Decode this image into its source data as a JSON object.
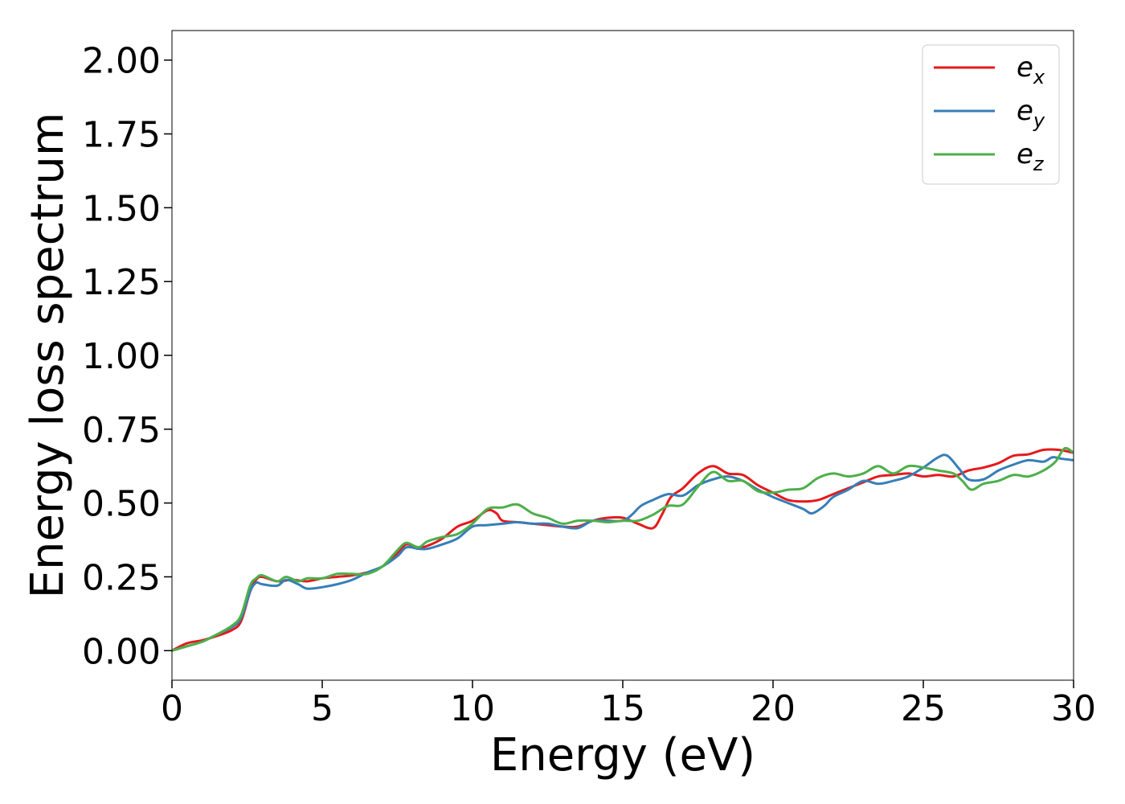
{
  "chart_data": {
    "type": "line",
    "title": "",
    "xlabel": "Energy (eV)",
    "ylabel": "Energy loss spectrum",
    "xlim": [
      0,
      30
    ],
    "ylim": [
      -0.1,
      2.1
    ],
    "xticks": [
      0,
      5,
      10,
      15,
      20,
      25,
      30
    ],
    "xtick_labels": [
      "0",
      "5",
      "10",
      "15",
      "20",
      "25",
      "30"
    ],
    "yticks": [
      0.0,
      0.25,
      0.5,
      0.75,
      1.0,
      1.25,
      1.5,
      1.75,
      2.0
    ],
    "ytick_labels": [
      "0.00",
      "0.25",
      "0.50",
      "0.75",
      "1.00",
      "1.25",
      "1.50",
      "1.75",
      "2.00"
    ],
    "grid": false,
    "legend_position": "top-right",
    "series": [
      {
        "name": "ex",
        "legend_base": "e",
        "legend_sub": "x",
        "color": "#e41a1c",
        "points": [
          [
            0,
            0
          ],
          [
            0.5,
            0.025
          ],
          [
            1,
            0.035
          ],
          [
            1.5,
            0.05
          ],
          [
            2,
            0.07
          ],
          [
            2.3,
            0.1
          ],
          [
            2.6,
            0.2
          ],
          [
            2.8,
            0.24
          ],
          [
            3,
            0.25
          ],
          [
            3.5,
            0.235
          ],
          [
            4,
            0.24
          ],
          [
            4.5,
            0.235
          ],
          [
            5,
            0.245
          ],
          [
            5.5,
            0.25
          ],
          [
            6,
            0.255
          ],
          [
            6.5,
            0.265
          ],
          [
            7,
            0.285
          ],
          [
            7.5,
            0.33
          ],
          [
            7.8,
            0.36
          ],
          [
            8.2,
            0.35
          ],
          [
            8.5,
            0.355
          ],
          [
            9,
            0.38
          ],
          [
            9.5,
            0.42
          ],
          [
            10,
            0.44
          ],
          [
            10.5,
            0.475
          ],
          [
            10.8,
            0.465
          ],
          [
            11,
            0.44
          ],
          [
            11.5,
            0.435
          ],
          [
            12,
            0.43
          ],
          [
            12.5,
            0.425
          ],
          [
            13,
            0.42
          ],
          [
            13.5,
            0.42
          ],
          [
            14,
            0.44
          ],
          [
            14.5,
            0.45
          ],
          [
            15,
            0.45
          ],
          [
            15.5,
            0.43
          ],
          [
            16,
            0.415
          ],
          [
            16.3,
            0.46
          ],
          [
            16.6,
            0.52
          ],
          [
            17,
            0.55
          ],
          [
            17.5,
            0.6
          ],
          [
            18,
            0.625
          ],
          [
            18.5,
            0.6
          ],
          [
            19,
            0.595
          ],
          [
            19.5,
            0.56
          ],
          [
            20,
            0.535
          ],
          [
            20.5,
            0.51
          ],
          [
            21,
            0.505
          ],
          [
            21.5,
            0.51
          ],
          [
            22,
            0.53
          ],
          [
            22.5,
            0.55
          ],
          [
            23,
            0.57
          ],
          [
            23.5,
            0.59
          ],
          [
            24,
            0.595
          ],
          [
            24.5,
            0.6
          ],
          [
            25,
            0.59
          ],
          [
            25.5,
            0.595
          ],
          [
            26,
            0.59
          ],
          [
            26.5,
            0.61
          ],
          [
            27,
            0.62
          ],
          [
            27.5,
            0.635
          ],
          [
            28,
            0.66
          ],
          [
            28.5,
            0.665
          ],
          [
            29,
            0.68
          ],
          [
            29.5,
            0.68
          ],
          [
            30,
            0.67
          ]
        ]
      },
      {
        "name": "ey",
        "legend_base": "e",
        "legend_sub": "y",
        "color": "#377eb8",
        "points": [
          [
            0,
            0
          ],
          [
            0.5,
            0.015
          ],
          [
            1,
            0.03
          ],
          [
            1.5,
            0.055
          ],
          [
            2,
            0.08
          ],
          [
            2.3,
            0.11
          ],
          [
            2.6,
            0.2
          ],
          [
            2.8,
            0.23
          ],
          [
            3,
            0.225
          ],
          [
            3.5,
            0.22
          ],
          [
            3.8,
            0.24
          ],
          [
            4.2,
            0.225
          ],
          [
            4.5,
            0.21
          ],
          [
            5,
            0.215
          ],
          [
            5.5,
            0.225
          ],
          [
            6,
            0.24
          ],
          [
            6.5,
            0.265
          ],
          [
            7,
            0.285
          ],
          [
            7.5,
            0.32
          ],
          [
            7.8,
            0.35
          ],
          [
            8.2,
            0.345
          ],
          [
            8.5,
            0.345
          ],
          [
            9,
            0.36
          ],
          [
            9.5,
            0.38
          ],
          [
            10,
            0.42
          ],
          [
            10.5,
            0.425
          ],
          [
            11,
            0.43
          ],
          [
            11.5,
            0.435
          ],
          [
            12,
            0.43
          ],
          [
            12.5,
            0.43
          ],
          [
            13,
            0.42
          ],
          [
            13.5,
            0.415
          ],
          [
            14,
            0.44
          ],
          [
            14.5,
            0.44
          ],
          [
            15,
            0.44
          ],
          [
            15.3,
            0.46
          ],
          [
            15.6,
            0.49
          ],
          [
            16,
            0.51
          ],
          [
            16.5,
            0.53
          ],
          [
            17,
            0.525
          ],
          [
            17.5,
            0.56
          ],
          [
            18,
            0.58
          ],
          [
            18.5,
            0.59
          ],
          [
            19,
            0.575
          ],
          [
            19.5,
            0.545
          ],
          [
            20,
            0.52
          ],
          [
            20.5,
            0.5
          ],
          [
            21,
            0.48
          ],
          [
            21.3,
            0.465
          ],
          [
            21.7,
            0.49
          ],
          [
            22,
            0.52
          ],
          [
            22.5,
            0.545
          ],
          [
            23,
            0.575
          ],
          [
            23.5,
            0.565
          ],
          [
            24,
            0.575
          ],
          [
            24.5,
            0.59
          ],
          [
            25,
            0.62
          ],
          [
            25.5,
            0.655
          ],
          [
            25.8,
            0.66
          ],
          [
            26.2,
            0.615
          ],
          [
            26.5,
            0.58
          ],
          [
            27,
            0.58
          ],
          [
            27.5,
            0.61
          ],
          [
            28,
            0.63
          ],
          [
            28.5,
            0.645
          ],
          [
            29,
            0.64
          ],
          [
            29.3,
            0.655
          ],
          [
            29.6,
            0.65
          ],
          [
            30,
            0.645
          ]
        ]
      },
      {
        "name": "ez",
        "legend_base": "e",
        "legend_sub": "z",
        "color": "#4daf4a",
        "points": [
          [
            0,
            0
          ],
          [
            0.5,
            0.015
          ],
          [
            1,
            0.03
          ],
          [
            1.5,
            0.055
          ],
          [
            2,
            0.085
          ],
          [
            2.3,
            0.12
          ],
          [
            2.6,
            0.22
          ],
          [
            2.8,
            0.245
          ],
          [
            3,
            0.255
          ],
          [
            3.5,
            0.235
          ],
          [
            3.8,
            0.25
          ],
          [
            4.2,
            0.235
          ],
          [
            4.5,
            0.245
          ],
          [
            5,
            0.245
          ],
          [
            5.5,
            0.26
          ],
          [
            6,
            0.26
          ],
          [
            6.5,
            0.26
          ],
          [
            7,
            0.285
          ],
          [
            7.5,
            0.34
          ],
          [
            7.8,
            0.365
          ],
          [
            8.2,
            0.35
          ],
          [
            8.5,
            0.37
          ],
          [
            9,
            0.385
          ],
          [
            9.5,
            0.395
          ],
          [
            10,
            0.43
          ],
          [
            10.5,
            0.48
          ],
          [
            11,
            0.485
          ],
          [
            11.5,
            0.495
          ],
          [
            12,
            0.465
          ],
          [
            12.5,
            0.45
          ],
          [
            13,
            0.43
          ],
          [
            13.5,
            0.44
          ],
          [
            14,
            0.44
          ],
          [
            14.5,
            0.435
          ],
          [
            15,
            0.44
          ],
          [
            15.5,
            0.44
          ],
          [
            16,
            0.46
          ],
          [
            16.5,
            0.49
          ],
          [
            17,
            0.495
          ],
          [
            17.5,
            0.555
          ],
          [
            18,
            0.605
          ],
          [
            18.5,
            0.575
          ],
          [
            19,
            0.575
          ],
          [
            19.5,
            0.54
          ],
          [
            20,
            0.535
          ],
          [
            20.5,
            0.545
          ],
          [
            21,
            0.55
          ],
          [
            21.5,
            0.585
          ],
          [
            22,
            0.6
          ],
          [
            22.5,
            0.59
          ],
          [
            23,
            0.6
          ],
          [
            23.5,
            0.625
          ],
          [
            24,
            0.6
          ],
          [
            24.5,
            0.625
          ],
          [
            25,
            0.62
          ],
          [
            25.5,
            0.61
          ],
          [
            26,
            0.6
          ],
          [
            26.3,
            0.575
          ],
          [
            26.6,
            0.545
          ],
          [
            27,
            0.565
          ],
          [
            27.5,
            0.575
          ],
          [
            28,
            0.595
          ],
          [
            28.5,
            0.59
          ],
          [
            29,
            0.61
          ],
          [
            29.4,
            0.64
          ],
          [
            29.7,
            0.685
          ],
          [
            30,
            0.67
          ]
        ]
      }
    ]
  }
}
